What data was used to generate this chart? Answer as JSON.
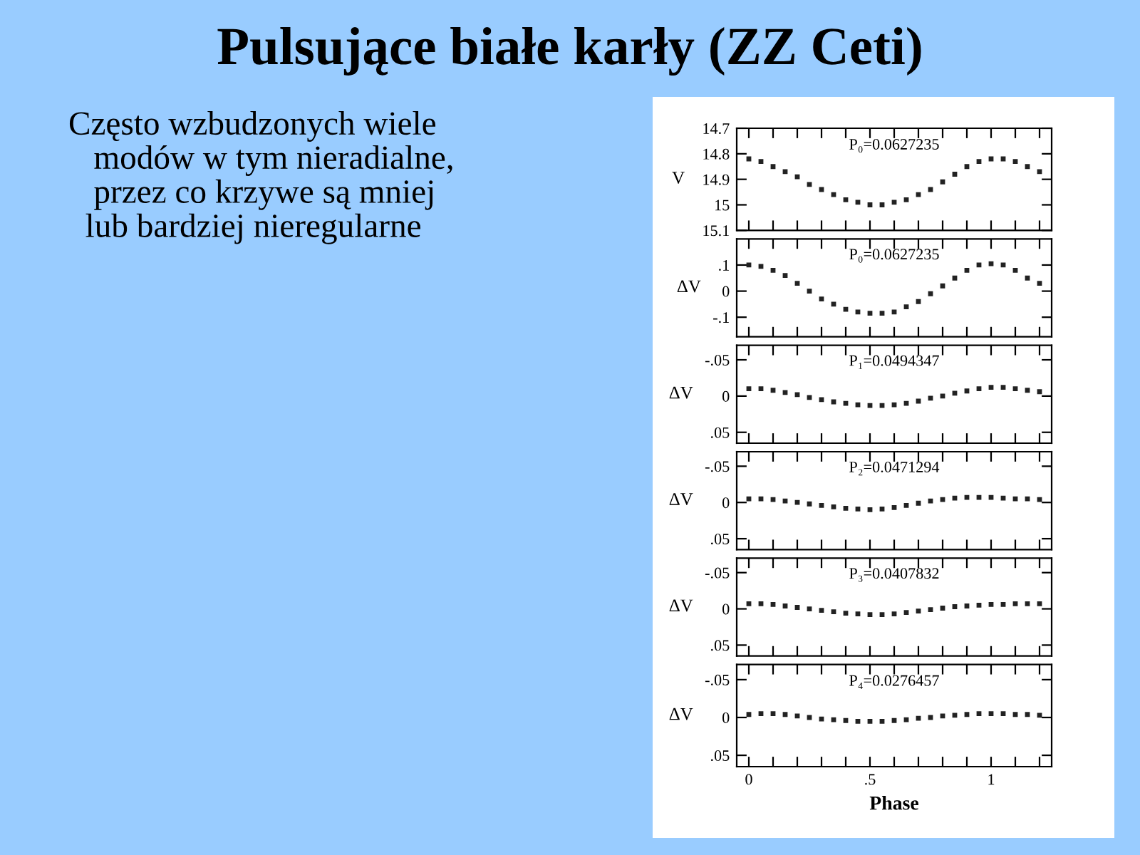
{
  "chart_data": [
    {
      "type": "scatter",
      "title": "Pulsujące białe karły (ZZ Ceti)",
      "ylabel": "V",
      "annotations": [
        "P₀=0.0627235",
        "Często wzbudzonych wiele\n   modów w tym nieradialne,\n   przez co krzywe są mniej\n  lub bardziej nieregularne"
      ],
      "marker": "square",
      "tick_labels": "y",
      "grid": false,
      "xlim": [
        -0.05,
        1.25
      ],
      "xticks": [
        {
          "value": 0,
          "label": null
        },
        {
          "value": 0.1,
          "label": null
        },
        {
          "value": 0.2,
          "label": null
        },
        {
          "value": 0.3,
          "label": null
        },
        {
          "value": 0.4,
          "label": null
        },
        {
          "value": 0.5,
          "label": null
        },
        {
          "value": 0.6,
          "label": null
        },
        {
          "value": 0.7,
          "label": null
        },
        {
          "value": 0.8,
          "label": null
        },
        {
          "value": 0.9,
          "label": null
        },
        {
          "value": 1,
          "label": null
        },
        {
          "value": 1.1,
          "label": null
        },
        {
          "value": 1.2,
          "label": null
        }
      ],
      "ylim": [
        15.1,
        14.7
      ],
      "yticks": [
        14.7,
        14.8,
        14.9,
        15,
        15.1
      ],
      "x": [
        0,
        0.05,
        0.1,
        0.15,
        0.2,
        0.25,
        0.3,
        0.35,
        0.4,
        0.45,
        0.5,
        0.55,
        0.6,
        0.65,
        0.7,
        0.75,
        0.8,
        0.85,
        0.9,
        0.95,
        1,
        1.05,
        1.1,
        1.15,
        1.2
      ],
      "series": [
        {
          "color": "#222222",
          "values": [
            14.82,
            14.83,
            14.85,
            14.87,
            14.89,
            14.92,
            14.94,
            14.96,
            14.98,
            14.99,
            15.0,
            15.0,
            14.99,
            14.98,
            14.96,
            14.94,
            14.91,
            14.88,
            14.85,
            14.83,
            14.82,
            14.82,
            14.83,
            14.85,
            14.87
          ]
        }
      ]
    },
    {
      "type": "scatter",
      "ylabel": "ΔV",
      "annotations": [
        "P₀=0.0627235"
      ],
      "marker": "square",
      "tick_labels": "y",
      "grid": false,
      "xlim": [
        -0.05,
        1.25
      ],
      "xticks": [
        {
          "value": 0,
          "label": null
        },
        {
          "value": 0.1,
          "label": null
        },
        {
          "value": 0.2,
          "label": null
        },
        {
          "value": 0.3,
          "label": null
        },
        {
          "value": 0.4,
          "label": null
        },
        {
          "value": 0.5,
          "label": null
        },
        {
          "value": 0.6,
          "label": null
        },
        {
          "value": 0.7,
          "label": null
        },
        {
          "value": 0.8,
          "label": null
        },
        {
          "value": 0.9,
          "label": null
        },
        {
          "value": 1,
          "label": null
        },
        {
          "value": 1.1,
          "label": null
        },
        {
          "value": 1.2,
          "label": null
        }
      ],
      "ylim": [
        -0.175,
        0.2
      ],
      "yticks": [
        {
          "value": 0.1,
          "label": ".1"
        },
        0,
        {
          "value": -0.1,
          "label": "-.1"
        }
      ],
      "x": [
        0,
        0.05,
        0.1,
        0.15,
        0.2,
        0.25,
        0.3,
        0.35,
        0.4,
        0.45,
        0.5,
        0.55,
        0.6,
        0.65,
        0.7,
        0.75,
        0.8,
        0.85,
        0.9,
        0.95,
        1,
        1.05,
        1.1,
        1.15,
        1.2
      ],
      "series": [
        {
          "color": "#222222",
          "values": [
            0.1,
            0.095,
            0.08,
            0.06,
            0.03,
            0.0,
            -0.03,
            -0.05,
            -0.07,
            -0.08,
            -0.085,
            -0.085,
            -0.08,
            -0.06,
            -0.04,
            -0.01,
            0.02,
            0.05,
            0.08,
            0.1,
            0.105,
            0.1,
            0.08,
            0.05,
            0.03
          ]
        }
      ]
    },
    {
      "type": "scatter",
      "ylabel": "ΔV",
      "annotations": [
        "P₁=0.0494347"
      ],
      "marker": "square",
      "tick_labels": "y",
      "grid": false,
      "xlim": [
        -0.05,
        1.25
      ],
      "xticks": [
        {
          "value": 0,
          "label": null
        },
        {
          "value": 0.1,
          "label": null
        },
        {
          "value": 0.2,
          "label": null
        },
        {
          "value": 0.3,
          "label": null
        },
        {
          "value": 0.4,
          "label": null
        },
        {
          "value": 0.5,
          "label": null
        },
        {
          "value": 0.6,
          "label": null
        },
        {
          "value": 0.7,
          "label": null
        },
        {
          "value": 0.8,
          "label": null
        },
        {
          "value": 0.9,
          "label": null
        },
        {
          "value": 1,
          "label": null
        },
        {
          "value": 1.1,
          "label": null
        },
        {
          "value": 1.2,
          "label": null
        }
      ],
      "ylim": [
        0.065,
        -0.07
      ],
      "yticks": [
        {
          "value": -0.05,
          "label": "-.05"
        },
        0,
        {
          "value": 0.05,
          "label": ".05"
        }
      ],
      "x": [
        0,
        0.05,
        0.1,
        0.15,
        0.2,
        0.25,
        0.3,
        0.35,
        0.4,
        0.45,
        0.5,
        0.55,
        0.6,
        0.65,
        0.7,
        0.75,
        0.8,
        0.85,
        0.9,
        0.95,
        1,
        1.05,
        1.1,
        1.15,
        1.2
      ],
      "series": [
        {
          "color": "#222222",
          "values": [
            -0.01,
            -0.01,
            -0.008,
            -0.005,
            -0.002,
            0.002,
            0.005,
            0.008,
            0.01,
            0.012,
            0.013,
            0.013,
            0.012,
            0.01,
            0.007,
            0.003,
            0,
            -0.004,
            -0.007,
            -0.01,
            -0.012,
            -0.012,
            -0.01,
            -0.008,
            -0.006
          ]
        }
      ]
    },
    {
      "type": "scatter",
      "ylabel": "ΔV",
      "annotations": [
        "P₂=0.0471294"
      ],
      "marker": "square",
      "tick_labels": "y",
      "grid": false,
      "xlim": [
        -0.05,
        1.25
      ],
      "xticks": [
        {
          "value": 0,
          "label": null
        },
        {
          "value": 0.1,
          "label": null
        },
        {
          "value": 0.2,
          "label": null
        },
        {
          "value": 0.3,
          "label": null
        },
        {
          "value": 0.4,
          "label": null
        },
        {
          "value": 0.5,
          "label": null
        },
        {
          "value": 0.6,
          "label": null
        },
        {
          "value": 0.7,
          "label": null
        },
        {
          "value": 0.8,
          "label": null
        },
        {
          "value": 0.9,
          "label": null
        },
        {
          "value": 1,
          "label": null
        },
        {
          "value": 1.1,
          "label": null
        },
        {
          "value": 1.2,
          "label": null
        }
      ],
      "ylim": [
        0.065,
        -0.07
      ],
      "yticks": [
        {
          "value": -0.05,
          "label": "-.05"
        },
        0,
        {
          "value": 0.05,
          "label": ".05"
        }
      ],
      "x": [
        0,
        0.05,
        0.1,
        0.15,
        0.2,
        0.25,
        0.3,
        0.35,
        0.4,
        0.45,
        0.5,
        0.55,
        0.6,
        0.65,
        0.7,
        0.75,
        0.8,
        0.85,
        0.9,
        0.95,
        1,
        1.05,
        1.1,
        1.15,
        1.2
      ],
      "series": [
        {
          "color": "#222222",
          "values": [
            -0.005,
            -0.005,
            -0.004,
            -0.002,
            0,
            0.002,
            0.004,
            0.006,
            0.008,
            0.009,
            0.01,
            0.009,
            0.007,
            0.004,
            0.001,
            -0.002,
            -0.004,
            -0.006,
            -0.007,
            -0.007,
            -0.007,
            -0.006,
            -0.005,
            -0.005,
            -0.004
          ]
        }
      ]
    },
    {
      "type": "scatter",
      "ylabel": "ΔV",
      "annotations": [
        "P₃=0.0407832"
      ],
      "marker": "square",
      "tick_labels": "y",
      "grid": false,
      "xlim": [
        -0.05,
        1.25
      ],
      "xticks": [
        {
          "value": 0,
          "label": null
        },
        {
          "value": 0.1,
          "label": null
        },
        {
          "value": 0.2,
          "label": null
        },
        {
          "value": 0.3,
          "label": null
        },
        {
          "value": 0.4,
          "label": null
        },
        {
          "value": 0.5,
          "label": null
        },
        {
          "value": 0.6,
          "label": null
        },
        {
          "value": 0.7,
          "label": null
        },
        {
          "value": 0.8,
          "label": null
        },
        {
          "value": 0.9,
          "label": null
        },
        {
          "value": 1,
          "label": null
        },
        {
          "value": 1.1,
          "label": null
        },
        {
          "value": 1.2,
          "label": null
        }
      ],
      "ylim": [
        0.065,
        -0.07
      ],
      "yticks": [
        {
          "value": -0.05,
          "label": "-.05"
        },
        0,
        {
          "value": 0.05,
          "label": ".05"
        }
      ],
      "x": [
        0,
        0.05,
        0.1,
        0.15,
        0.2,
        0.25,
        0.3,
        0.35,
        0.4,
        0.45,
        0.5,
        0.55,
        0.6,
        0.65,
        0.7,
        0.75,
        0.8,
        0.85,
        0.9,
        0.95,
        1,
        1.05,
        1.1,
        1.15,
        1.2
      ],
      "series": [
        {
          "color": "#222222",
          "values": [
            -0.007,
            -0.007,
            -0.006,
            -0.004,
            -0.002,
            0,
            0.002,
            0.004,
            0.006,
            0.007,
            0.008,
            0.008,
            0.007,
            0.005,
            0.003,
            0.001,
            -0.001,
            -0.003,
            -0.004,
            -0.005,
            -0.006,
            -0.006,
            -0.007,
            -0.007,
            -0.007
          ]
        }
      ]
    },
    {
      "type": "scatter",
      "ylabel": "ΔV",
      "xlabel": "Phase",
      "annotations": [
        "P₄=0.0276457"
      ],
      "marker": "square",
      "grid": false,
      "xlim": [
        -0.05,
        1.25
      ],
      "xticks": [
        0,
        {
          "value": 0.1,
          "label": null
        },
        {
          "value": 0.2,
          "label": null
        },
        {
          "value": 0.3,
          "label": null
        },
        {
          "value": 0.4,
          "label": null
        },
        {
          "value": 0.5,
          "label": ".5"
        },
        {
          "value": 0.6,
          "label": null
        },
        {
          "value": 0.7,
          "label": null
        },
        {
          "value": 0.8,
          "label": null
        },
        {
          "value": 0.9,
          "label": null
        },
        1,
        {
          "value": 1.1,
          "label": null
        },
        {
          "value": 1.2,
          "label": null
        }
      ],
      "ylim": [
        0.065,
        -0.07
      ],
      "yticks": [
        {
          "value": -0.05,
          "label": "-.05"
        },
        0,
        {
          "value": 0.05,
          "label": ".05"
        }
      ],
      "x": [
        0,
        0.05,
        0.1,
        0.15,
        0.2,
        0.25,
        0.3,
        0.35,
        0.4,
        0.45,
        0.5,
        0.55,
        0.6,
        0.65,
        0.7,
        0.75,
        0.8,
        0.85,
        0.9,
        0.95,
        1,
        1.05,
        1.1,
        1.15,
        1.2
      ],
      "series": [
        {
          "color": "#222222",
          "values": [
            -0.004,
            -0.005,
            -0.005,
            -0.004,
            -0.002,
            0,
            0.002,
            0.003,
            0.004,
            0.005,
            0.005,
            0.005,
            0.004,
            0.003,
            0.001,
            0,
            -0.002,
            -0.003,
            -0.004,
            -0.005,
            -0.005,
            -0.005,
            -0.004,
            -0.004,
            -0.003
          ]
        }
      ]
    }
  ]
}
